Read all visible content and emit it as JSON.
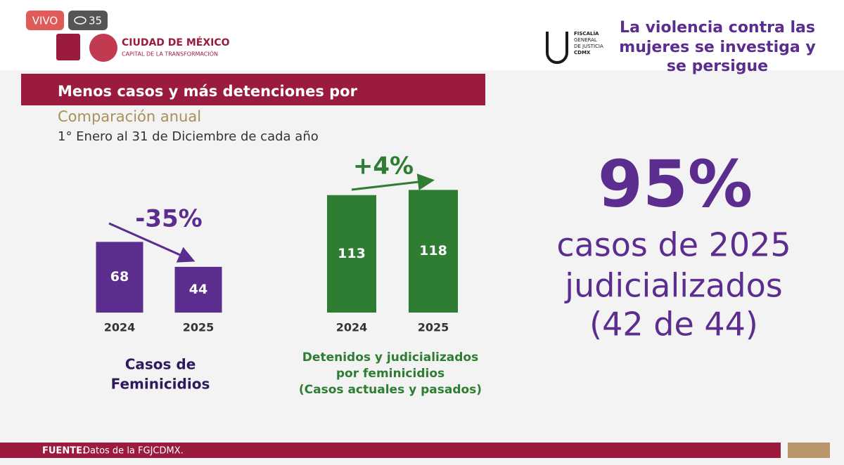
{
  "stream": {
    "live": "VIVO",
    "viewers": "35"
  },
  "logo_cdmx": {
    "name": "CIUDAD DE MÉXICO",
    "tagline": "CAPITAL DE LA TRANSFORMACIÓN"
  },
  "logo_fgj": {
    "lines": [
      "FISCALÍA",
      "GENERAL",
      "DE JUSTICIA",
      "CDMX"
    ]
  },
  "headline": [
    "La violencia contra las",
    "mujeres se investiga y",
    "se persigue"
  ],
  "slide": {
    "title": "Menos casos y más detenciones por",
    "subtitle": "Comparación anual",
    "period": "1° Enero al 31 de Diciembre de cada año"
  },
  "chart_data": [
    {
      "type": "bar",
      "categories": [
        "2024",
        "2025"
      ],
      "values": [
        68,
        44
      ],
      "color": "#5b2d8e",
      "annotation": "-35%",
      "caption": [
        "Casos de",
        "Feminicidios"
      ]
    },
    {
      "type": "bar",
      "categories": [
        "2024",
        "2025"
      ],
      "values": [
        113,
        118
      ],
      "color": "#2e7d32",
      "annotation": "+4%",
      "caption": [
        "Detenidos y judicializados",
        "por feminicidios",
        "(Casos actuales y pasados)"
      ]
    }
  ],
  "highlight": {
    "figure": "95%",
    "lines": [
      "casos de 2025",
      "judicializados",
      "(42 de 44)"
    ]
  },
  "footer": {
    "label": "FUENTE:",
    "text": "Datos de la FGJCDMX."
  }
}
